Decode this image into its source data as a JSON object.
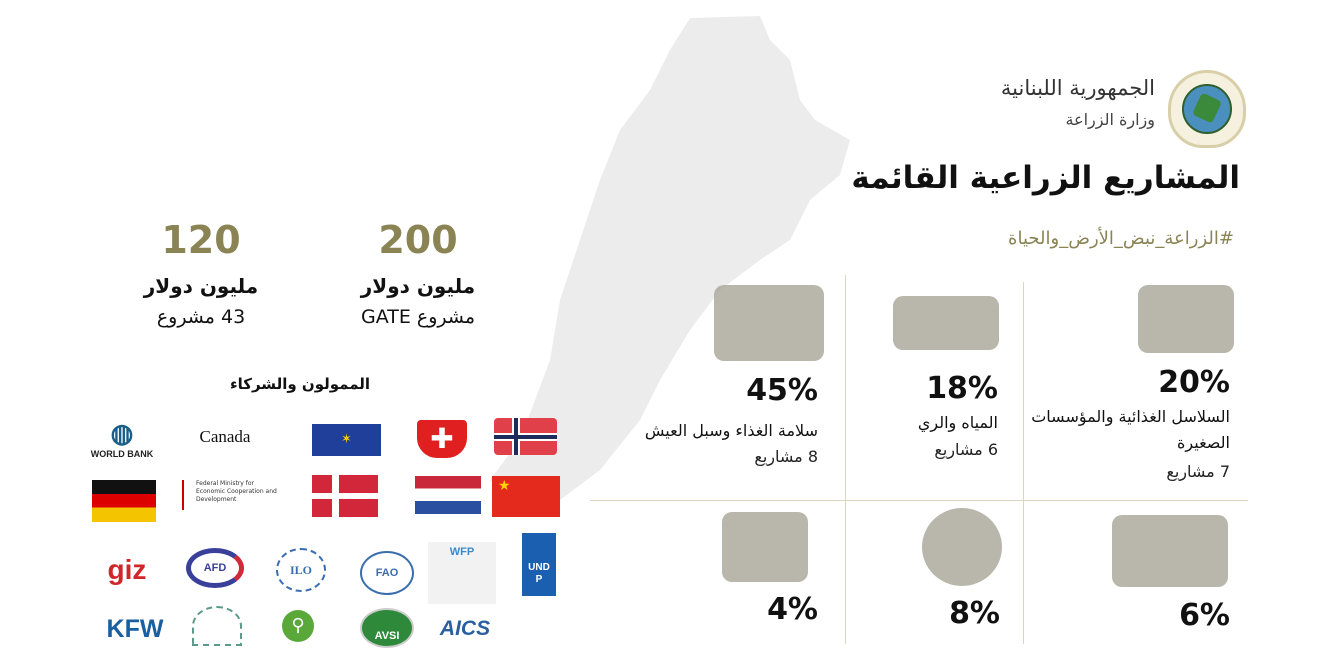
{
  "header": {
    "republic": "الجمهورية اللبنانية",
    "ministry": "وزارة الزراعة",
    "title": "المشاريع الزراعية القائمة",
    "hashtag": "#الزراعة_نبض_الأرض_والحياة"
  },
  "funding": [
    {
      "amount": "200",
      "unit": "مليون دولار",
      "note": "مشروع GATE"
    },
    {
      "amount": "120",
      "unit": "مليون دولار",
      "note": "43 مشروع"
    }
  ],
  "partners": {
    "heading": "الممولون والشركاء",
    "logos": [
      "WORLD BANK",
      "Canada",
      "European Union",
      "Switzerland",
      "Norway",
      "Germany",
      "Federal Ministry for Economic Cooperation and Development",
      "Denmark",
      "Netherlands",
      "China",
      "giz",
      "AFD",
      "ILO",
      "FAO",
      "WFP",
      "UNDP",
      "KFW",
      "",
      "",
      "AVSI",
      "AICS"
    ]
  },
  "sectors": [
    {
      "pct": "20%",
      "label": "السلاسل الغذائية والمؤسسات الصغيرة",
      "count": "7 مشاريع",
      "icon": "vegetable-basket-icon"
    },
    {
      "pct": "18%",
      "label": "المياه والري",
      "count": "6 مشاريع",
      "icon": "irrigation-icon"
    },
    {
      "pct": "45%",
      "label": "سلامة الغذاء وسبل العيش",
      "count": "8 مشاريع",
      "icon": "farm-tractor-icon"
    },
    {
      "pct": "6%",
      "icon": "livestock-icon"
    },
    {
      "pct": "8%",
      "icon": "plant-hands-icon"
    },
    {
      "pct": "4%",
      "icon": "handshake-checklist-icon"
    }
  ],
  "colors": {
    "accent": "#8a8455",
    "grid": "#d9d6bf",
    "map": "#ececec"
  }
}
